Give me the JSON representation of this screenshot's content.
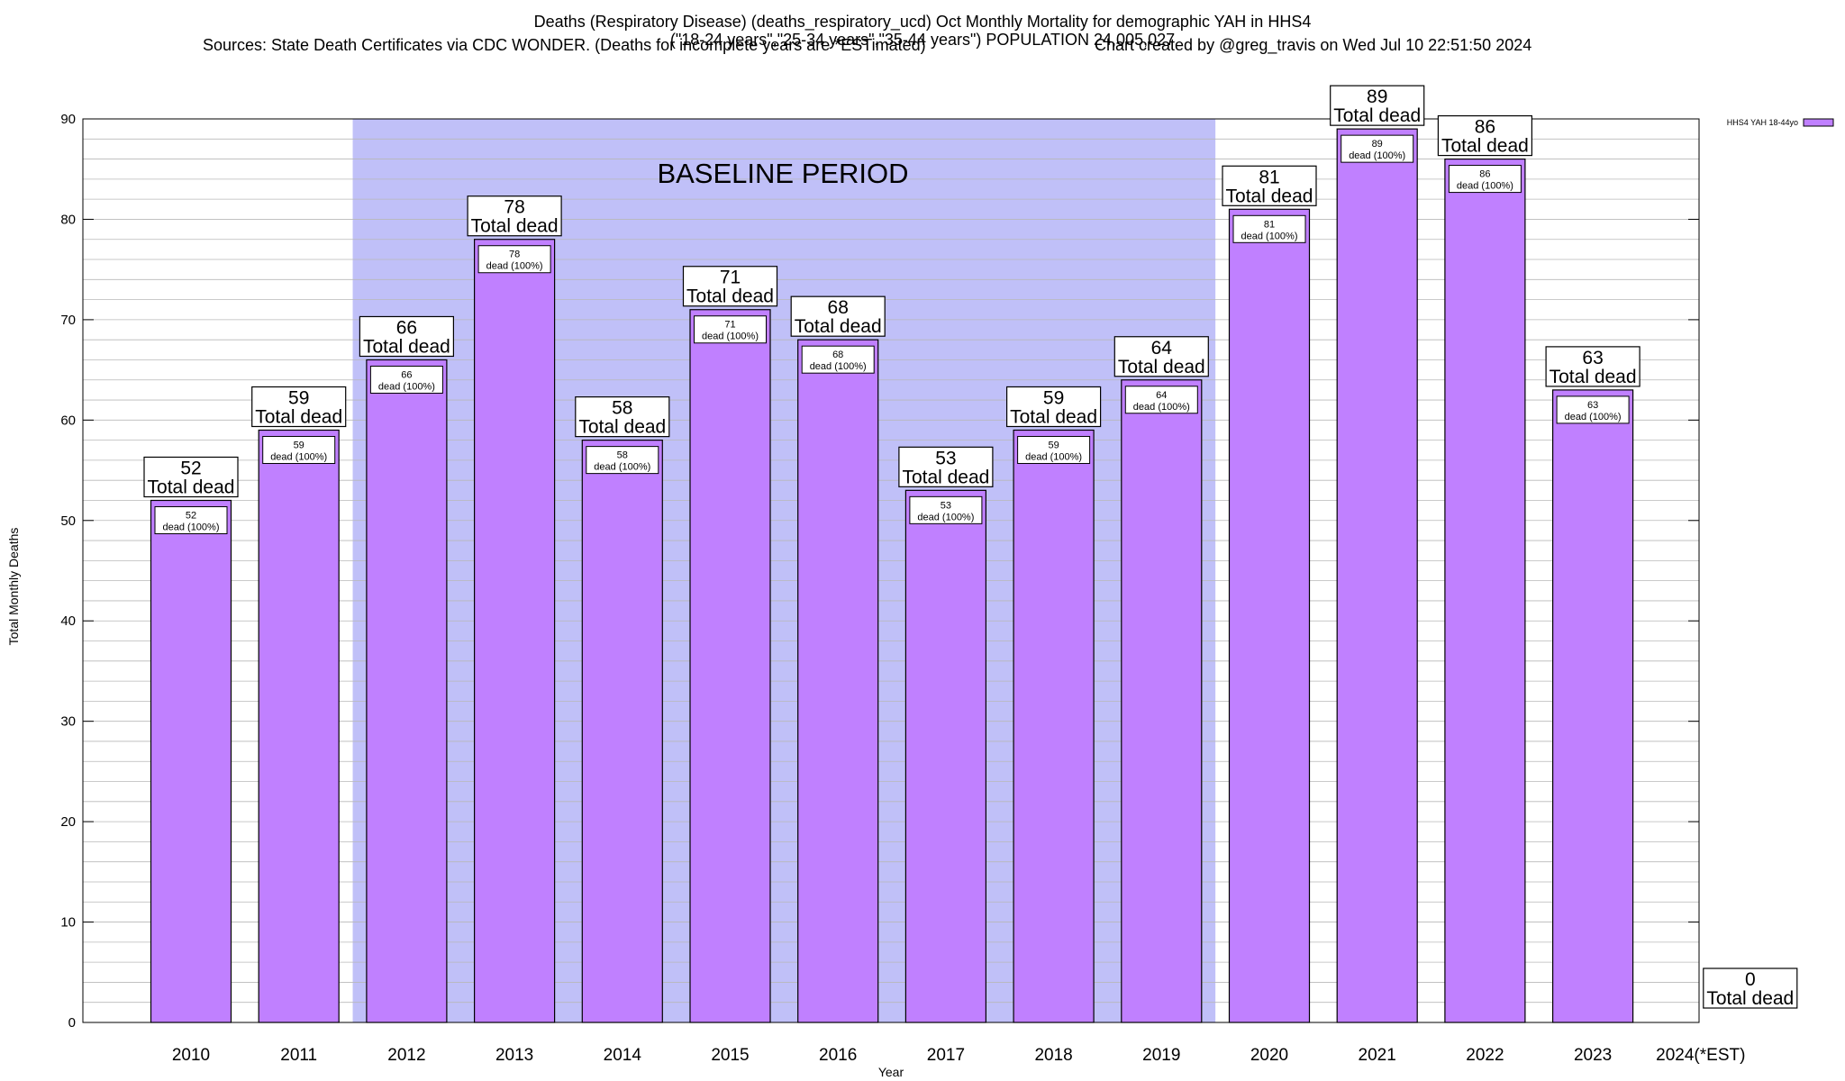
{
  "header": {
    "title": "Deaths (Respiratory Disease) (deaths_respiratory_ucd) Oct Monthly Mortality for demographic YAH in HHS4",
    "subtitle": "(\"18-24 years\",\"25-34 years\",\"35-44 years\") POPULATION 24,005,027",
    "sources": "Sources: State Death Certificates via CDC WONDER. (Deaths for incomplete years are *ESTimated)",
    "credit": "Chart created by @greg_travis on Wed Jul 10 22:51:50 2024"
  },
  "chart_data": {
    "type": "bar",
    "categories": [
      "2010",
      "2011",
      "2012",
      "2013",
      "2014",
      "2015",
      "2016",
      "2017",
      "2018",
      "2019",
      "2020",
      "2021",
      "2022",
      "2023",
      "2024(*EST)"
    ],
    "series": [
      {
        "name": "HHS4 YAH 18-44yo",
        "values": [
          52,
          59,
          66,
          78,
          58,
          71,
          68,
          53,
          59,
          64,
          81,
          89,
          86,
          63,
          0
        ]
      }
    ],
    "top_label_suffix": "Total dead",
    "inner_label_suffix": "dead (100%)",
    "xlabel": "Year",
    "ylabel": "Total Monthly Deaths",
    "ylim": [
      0,
      90
    ],
    "yticks": [
      0,
      10,
      20,
      30,
      40,
      50,
      60,
      70,
      80,
      90
    ],
    "minor_grid_step": 2,
    "baseline_period": {
      "label": "BASELINE PERIOD",
      "from": "2012",
      "to": "2019"
    },
    "colors": {
      "bar": "#c080ff",
      "baseline_band": "#c0c0f8",
      "grid": "#b8b8b8"
    },
    "legend_position": "top-right"
  }
}
